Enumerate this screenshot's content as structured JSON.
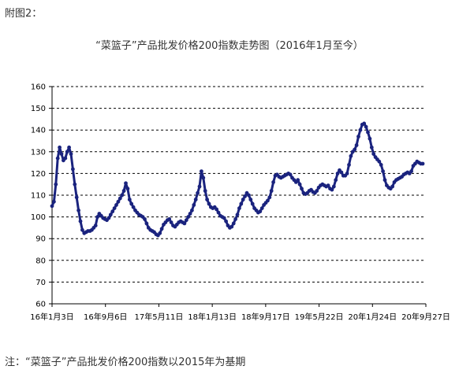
{
  "caption": "附图2：",
  "note": "注：“菜篮子”产品批发价格200指数以2015年为基期",
  "chart_data": {
    "type": "line",
    "title": "“菜篮子”产品批发价格200指数走势图（2016年1月至今）",
    "xlabel": "",
    "ylabel": "",
    "ylim": [
      60,
      160
    ],
    "yticks": [
      "60",
      "70",
      "80",
      "90",
      "100",
      "110",
      "120",
      "130",
      "140",
      "150",
      "160"
    ],
    "xticks": [
      "16年1月3日",
      "16年9月6日",
      "17年5月11日",
      "18年1月13日",
      "18年9月17日",
      "19年5月22日",
      "20年1月24日",
      "20年9月27日"
    ],
    "grid": "horizontal-dashed",
    "legend": "none",
    "line_color": "#1a237e",
    "series": [
      {
        "points": [
          [
            0,
            105
          ],
          [
            1,
            107
          ],
          [
            2,
            115
          ],
          [
            3,
            127
          ],
          [
            4,
            132
          ],
          [
            5,
            129
          ],
          [
            6,
            126
          ],
          [
            7,
            127
          ],
          [
            8,
            130
          ],
          [
            9,
            132
          ],
          [
            10,
            129
          ],
          [
            11,
            122
          ],
          [
            12,
            115
          ],
          [
            13,
            109
          ],
          [
            14,
            103
          ],
          [
            15,
            98
          ],
          [
            16,
            94
          ],
          [
            17,
            92.5
          ],
          [
            18,
            93
          ],
          [
            19,
            93.5
          ],
          [
            20,
            93.5
          ],
          [
            21,
            94
          ],
          [
            22,
            95
          ],
          [
            23,
            96
          ],
          [
            24,
            100
          ],
          [
            25,
            101.5
          ],
          [
            26,
            100.5
          ],
          [
            27,
            99.5
          ],
          [
            28,
            99
          ],
          [
            29,
            98.5
          ],
          [
            30,
            99.5
          ],
          [
            31,
            101
          ],
          [
            32,
            102.5
          ],
          [
            33,
            104
          ],
          [
            34,
            105.5
          ],
          [
            35,
            107
          ],
          [
            36,
            108.5
          ],
          [
            37,
            110
          ],
          [
            38,
            112
          ],
          [
            39,
            115.5
          ],
          [
            40,
            113
          ],
          [
            41,
            108
          ],
          [
            42,
            106
          ],
          [
            43,
            104.5
          ],
          [
            44,
            103
          ],
          [
            45,
            102
          ],
          [
            46,
            101
          ],
          [
            47,
            100.5
          ],
          [
            48,
            100
          ],
          [
            49,
            99
          ],
          [
            50,
            97
          ],
          [
            51,
            95
          ],
          [
            52,
            94
          ],
          [
            53,
            93.5
          ],
          [
            54,
            93
          ],
          [
            55,
            92
          ],
          [
            56,
            91.5
          ],
          [
            57,
            92.5
          ],
          [
            58,
            94.5
          ],
          [
            59,
            96.5
          ],
          [
            60,
            97.5
          ],
          [
            61,
            98.5
          ],
          [
            62,
            99
          ],
          [
            63,
            97.5
          ],
          [
            64,
            96
          ],
          [
            65,
            95.5
          ],
          [
            66,
            96.5
          ],
          [
            67,
            97.5
          ],
          [
            68,
            98
          ],
          [
            69,
            97.5
          ],
          [
            70,
            97
          ],
          [
            71,
            98.5
          ],
          [
            72,
            100
          ],
          [
            73,
            101.5
          ],
          [
            74,
            103
          ],
          [
            75,
            105.5
          ],
          [
            76,
            108
          ],
          [
            77,
            111
          ],
          [
            78,
            114
          ],
          [
            79,
            121
          ],
          [
            80,
            118
          ],
          [
            81,
            112
          ],
          [
            82,
            108
          ],
          [
            83,
            106
          ],
          [
            84,
            104.5
          ],
          [
            85,
            104
          ],
          [
            86,
            104.5
          ],
          [
            87,
            103.5
          ],
          [
            88,
            102
          ],
          [
            89,
            100.5
          ],
          [
            90,
            100
          ],
          [
            91,
            99.5
          ],
          [
            92,
            98
          ],
          [
            93,
            96
          ],
          [
            94,
            95
          ],
          [
            95,
            95.5
          ],
          [
            96,
            97
          ],
          [
            97,
            99
          ],
          [
            98,
            101
          ],
          [
            99,
            104
          ],
          [
            100,
            106
          ],
          [
            101,
            108
          ],
          [
            102,
            109.5
          ],
          [
            103,
            111
          ],
          [
            104,
            110
          ],
          [
            105,
            108
          ],
          [
            106,
            106
          ],
          [
            107,
            104
          ],
          [
            108,
            103
          ],
          [
            109,
            102
          ],
          [
            110,
            102.5
          ],
          [
            111,
            104
          ],
          [
            112,
            105.5
          ],
          [
            113,
            106.5
          ],
          [
            114,
            107.5
          ],
          [
            115,
            109
          ],
          [
            116,
            112
          ],
          [
            117,
            116
          ],
          [
            118,
            119
          ],
          [
            119,
            119.5
          ],
          [
            120,
            118.5
          ],
          [
            121,
            118
          ],
          [
            122,
            118.5
          ],
          [
            123,
            119
          ],
          [
            124,
            119.5
          ],
          [
            125,
            120
          ],
          [
            126,
            119.5
          ],
          [
            127,
            118
          ],
          [
            128,
            117
          ],
          [
            129,
            116
          ],
          [
            130,
            117
          ],
          [
            131,
            115
          ],
          [
            132,
            113
          ],
          [
            133,
            111
          ],
          [
            134,
            110.5
          ],
          [
            135,
            111
          ],
          [
            136,
            112
          ],
          [
            137,
            112.5
          ],
          [
            138,
            111.5
          ],
          [
            139,
            111
          ],
          [
            140,
            112
          ],
          [
            141,
            113.5
          ],
          [
            142,
            114.5
          ],
          [
            143,
            115
          ],
          [
            144,
            114.5
          ],
          [
            145,
            114
          ],
          [
            146,
            114.5
          ],
          [
            147,
            113
          ],
          [
            148,
            112.5
          ],
          [
            149,
            114
          ],
          [
            150,
            117
          ],
          [
            151,
            120
          ],
          [
            152,
            121.5
          ],
          [
            153,
            120.5
          ],
          [
            154,
            119
          ],
          [
            155,
            119
          ],
          [
            156,
            120
          ],
          [
            157,
            124
          ],
          [
            158,
            128
          ],
          [
            159,
            130
          ],
          [
            160,
            131
          ],
          [
            161,
            133
          ],
          [
            162,
            137
          ],
          [
            163,
            140
          ],
          [
            164,
            142.5
          ],
          [
            165,
            143
          ],
          [
            166,
            141.5
          ],
          [
            167,
            139
          ],
          [
            168,
            136
          ],
          [
            169,
            132
          ],
          [
            170,
            129
          ],
          [
            171,
            127.5
          ],
          [
            172,
            126.5
          ],
          [
            173,
            125.5
          ],
          [
            174,
            124
          ],
          [
            175,
            121
          ],
          [
            176,
            117
          ],
          [
            177,
            114.5
          ],
          [
            178,
            113.5
          ],
          [
            179,
            113
          ],
          [
            180,
            114
          ],
          [
            181,
            116
          ],
          [
            182,
            117
          ],
          [
            183,
            117.5
          ],
          [
            184,
            118
          ],
          [
            185,
            118.5
          ],
          [
            186,
            119.5
          ],
          [
            187,
            120
          ],
          [
            188,
            120.5
          ],
          [
            189,
            120
          ],
          [
            190,
            121
          ],
          [
            191,
            123.5
          ],
          [
            192,
            124.5
          ],
          [
            193,
            125.5
          ],
          [
            194,
            125
          ],
          [
            195,
            124.5
          ],
          [
            196,
            124.5
          ]
        ]
      }
    ]
  }
}
